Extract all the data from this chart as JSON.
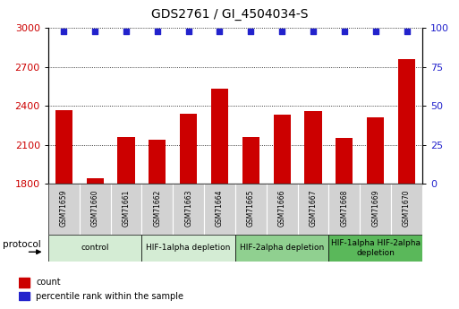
{
  "title": "GDS2761 / GI_4504034-S",
  "samples": [
    "GSM71659",
    "GSM71660",
    "GSM71661",
    "GSM71662",
    "GSM71663",
    "GSM71664",
    "GSM71665",
    "GSM71666",
    "GSM71667",
    "GSM71668",
    "GSM71669",
    "GSM71670"
  ],
  "counts": [
    2370,
    1840,
    2160,
    2140,
    2340,
    2530,
    2160,
    2330,
    2360,
    2150,
    2310,
    2760
  ],
  "percentile_ranks": [
    98,
    98,
    98,
    98,
    98,
    98,
    98,
    98,
    98,
    98,
    98,
    98
  ],
  "ylim_left": [
    1800,
    3000
  ],
  "ylim_right": [
    0,
    100
  ],
  "yticks_left": [
    1800,
    2100,
    2400,
    2700,
    3000
  ],
  "yticks_right": [
    0,
    25,
    50,
    75,
    100
  ],
  "bar_color": "#cc0000",
  "dot_color": "#2222cc",
  "bar_width": 0.55,
  "groups": [
    {
      "label": "control",
      "start": 0,
      "end": 2,
      "color": "#d4ecd4"
    },
    {
      "label": "HIF-1alpha depletion",
      "start": 3,
      "end": 5,
      "color": "#d4ecd4"
    },
    {
      "label": "HIF-2alpha depletion",
      "start": 6,
      "end": 8,
      "color": "#90d090"
    },
    {
      "label": "HIF-1alpha HIF-2alpha\ndepletion",
      "start": 9,
      "end": 11,
      "color": "#5ab85a"
    }
  ],
  "protocol_label": "protocol",
  "legend_count_color": "#cc0000",
  "legend_dot_color": "#2222cc",
  "title_fontsize": 10,
  "tick_fontsize": 8,
  "sample_fontsize": 5.5,
  "group_fontsize": 6.5,
  "legend_fontsize": 7,
  "proto_fontsize": 7.5
}
